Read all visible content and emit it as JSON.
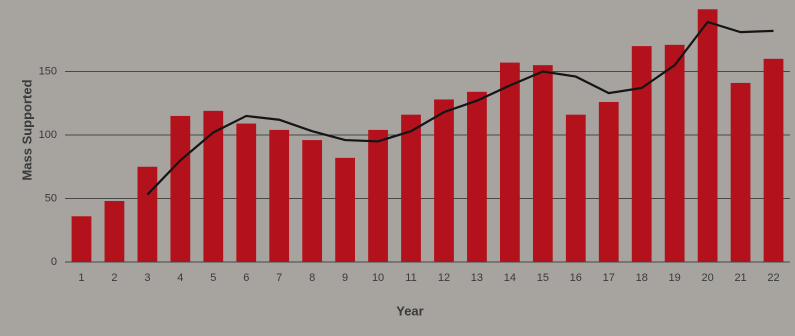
{
  "chart_data": {
    "type": "bar-line",
    "x_label": "Year",
    "y_label": "Mass Supported",
    "categories": [
      "1",
      "2",
      "3",
      "4",
      "5",
      "6",
      "7",
      "8",
      "9",
      "10",
      "11",
      "12",
      "13",
      "14",
      "15",
      "16",
      "17",
      "18",
      "19",
      "20",
      "21",
      "22"
    ],
    "series": [
      {
        "type": "bar",
        "color": "#b3121c",
        "values": [
          36,
          48,
          75,
          115,
          119,
          109,
          104,
          96,
          82,
          104,
          116,
          128,
          134,
          157,
          155,
          116,
          126,
          170,
          171,
          199,
          141,
          160
        ]
      },
      {
        "type": "line",
        "color": "#151515",
        "values": [
          null,
          null,
          53,
          80,
          102,
          115,
          112,
          103,
          96,
          95,
          103,
          118,
          127,
          139,
          150,
          146,
          133,
          137,
          155,
          189,
          181,
          182
        ]
      }
    ],
    "ylim": [
      0,
      200
    ],
    "yticks": [
      0,
      50,
      100,
      150
    ],
    "grid": true
  }
}
